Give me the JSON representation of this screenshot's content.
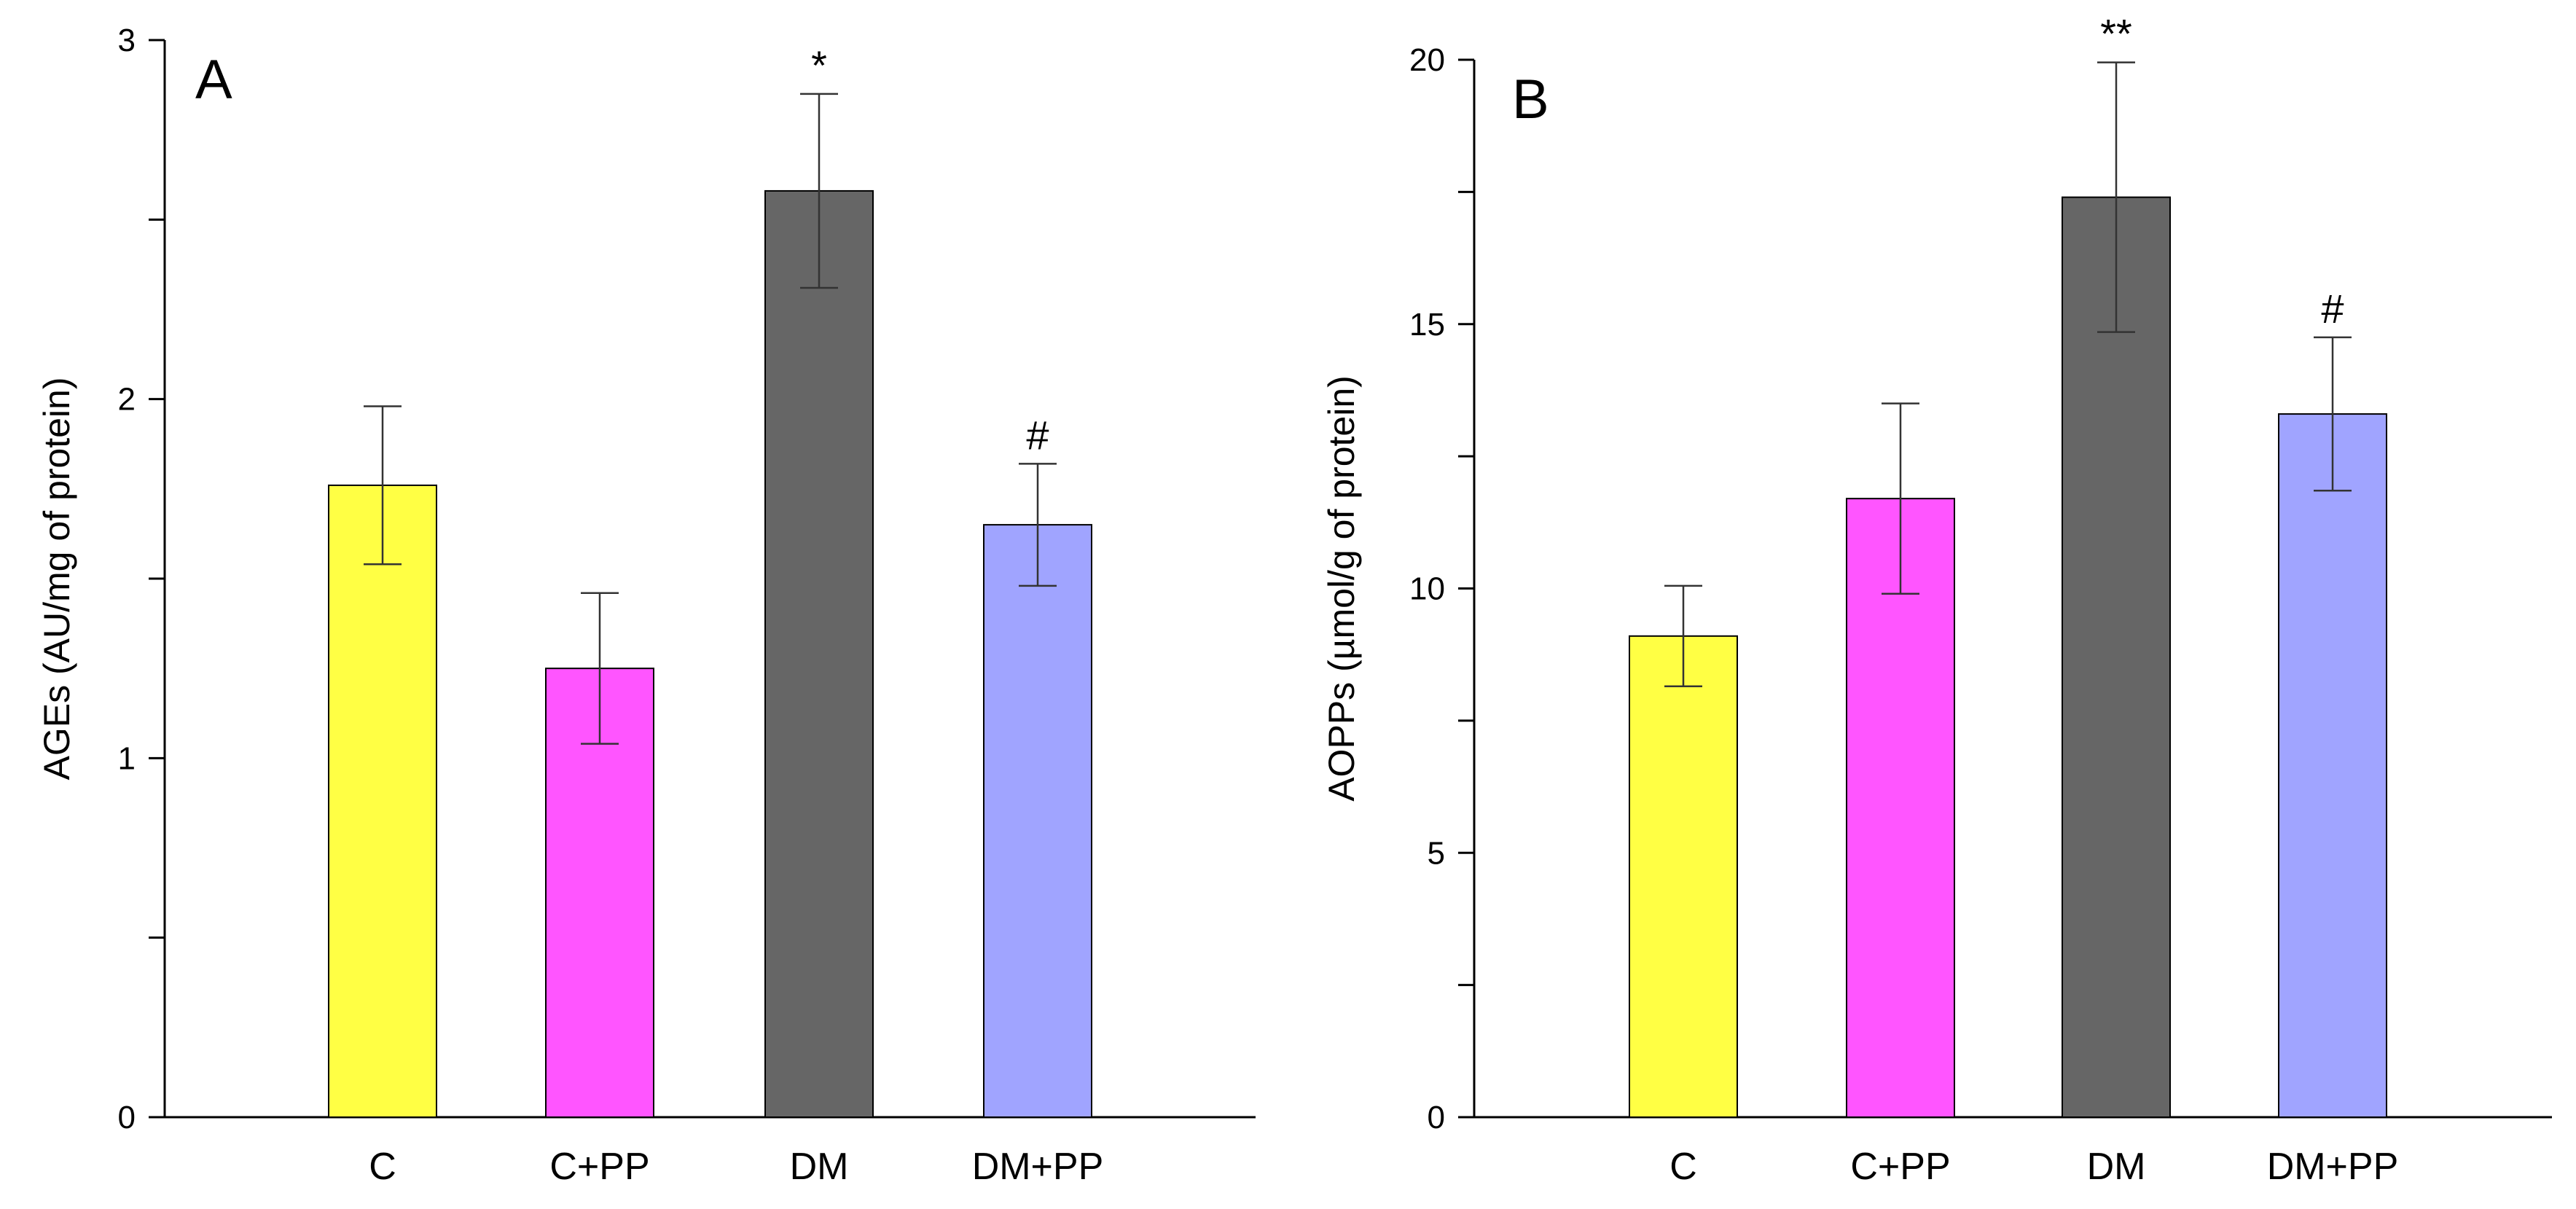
{
  "chart_data": [
    {
      "type": "bar",
      "panel_label": "A",
      "categories": [
        "C",
        "C+PP",
        "DM",
        "DM+PP"
      ],
      "values": [
        1.76,
        1.25,
        2.58,
        1.65
      ],
      "errors": [
        0.22,
        0.21,
        0.27,
        0.17
      ],
      "significance": [
        "",
        "",
        "*",
        "#"
      ],
      "colors": [
        "#ffff44",
        "#ff55ff",
        "#666666",
        "#a0a4ff"
      ],
      "ylabel": "AGEs (AU/mg of protein)",
      "xlabel": "",
      "ylim": [
        0,
        3
      ],
      "yticks_labeled": [
        0,
        1,
        2,
        3
      ],
      "yticks_minor": [
        0.5,
        1.5,
        2.5
      ]
    },
    {
      "type": "bar",
      "panel_label": "B",
      "categories": [
        "C",
        "C+PP",
        "DM",
        "DM+PP"
      ],
      "values": [
        9.1,
        11.7,
        17.4,
        13.3
      ],
      "errors": [
        0.95,
        1.8,
        2.55,
        1.45
      ],
      "significance": [
        "",
        "",
        "**",
        "#"
      ],
      "colors": [
        "#ffff44",
        "#ff55ff",
        "#666666",
        "#a0a4ff"
      ],
      "ylabel": "AOPPs (µmol/g of protein)",
      "xlabel": "",
      "ylim": [
        0,
        20
      ],
      "yticks_labeled": [
        0,
        5,
        10,
        15,
        20
      ],
      "yticks_minor": [
        2.5,
        7.5,
        12.5,
        17.5
      ]
    }
  ]
}
